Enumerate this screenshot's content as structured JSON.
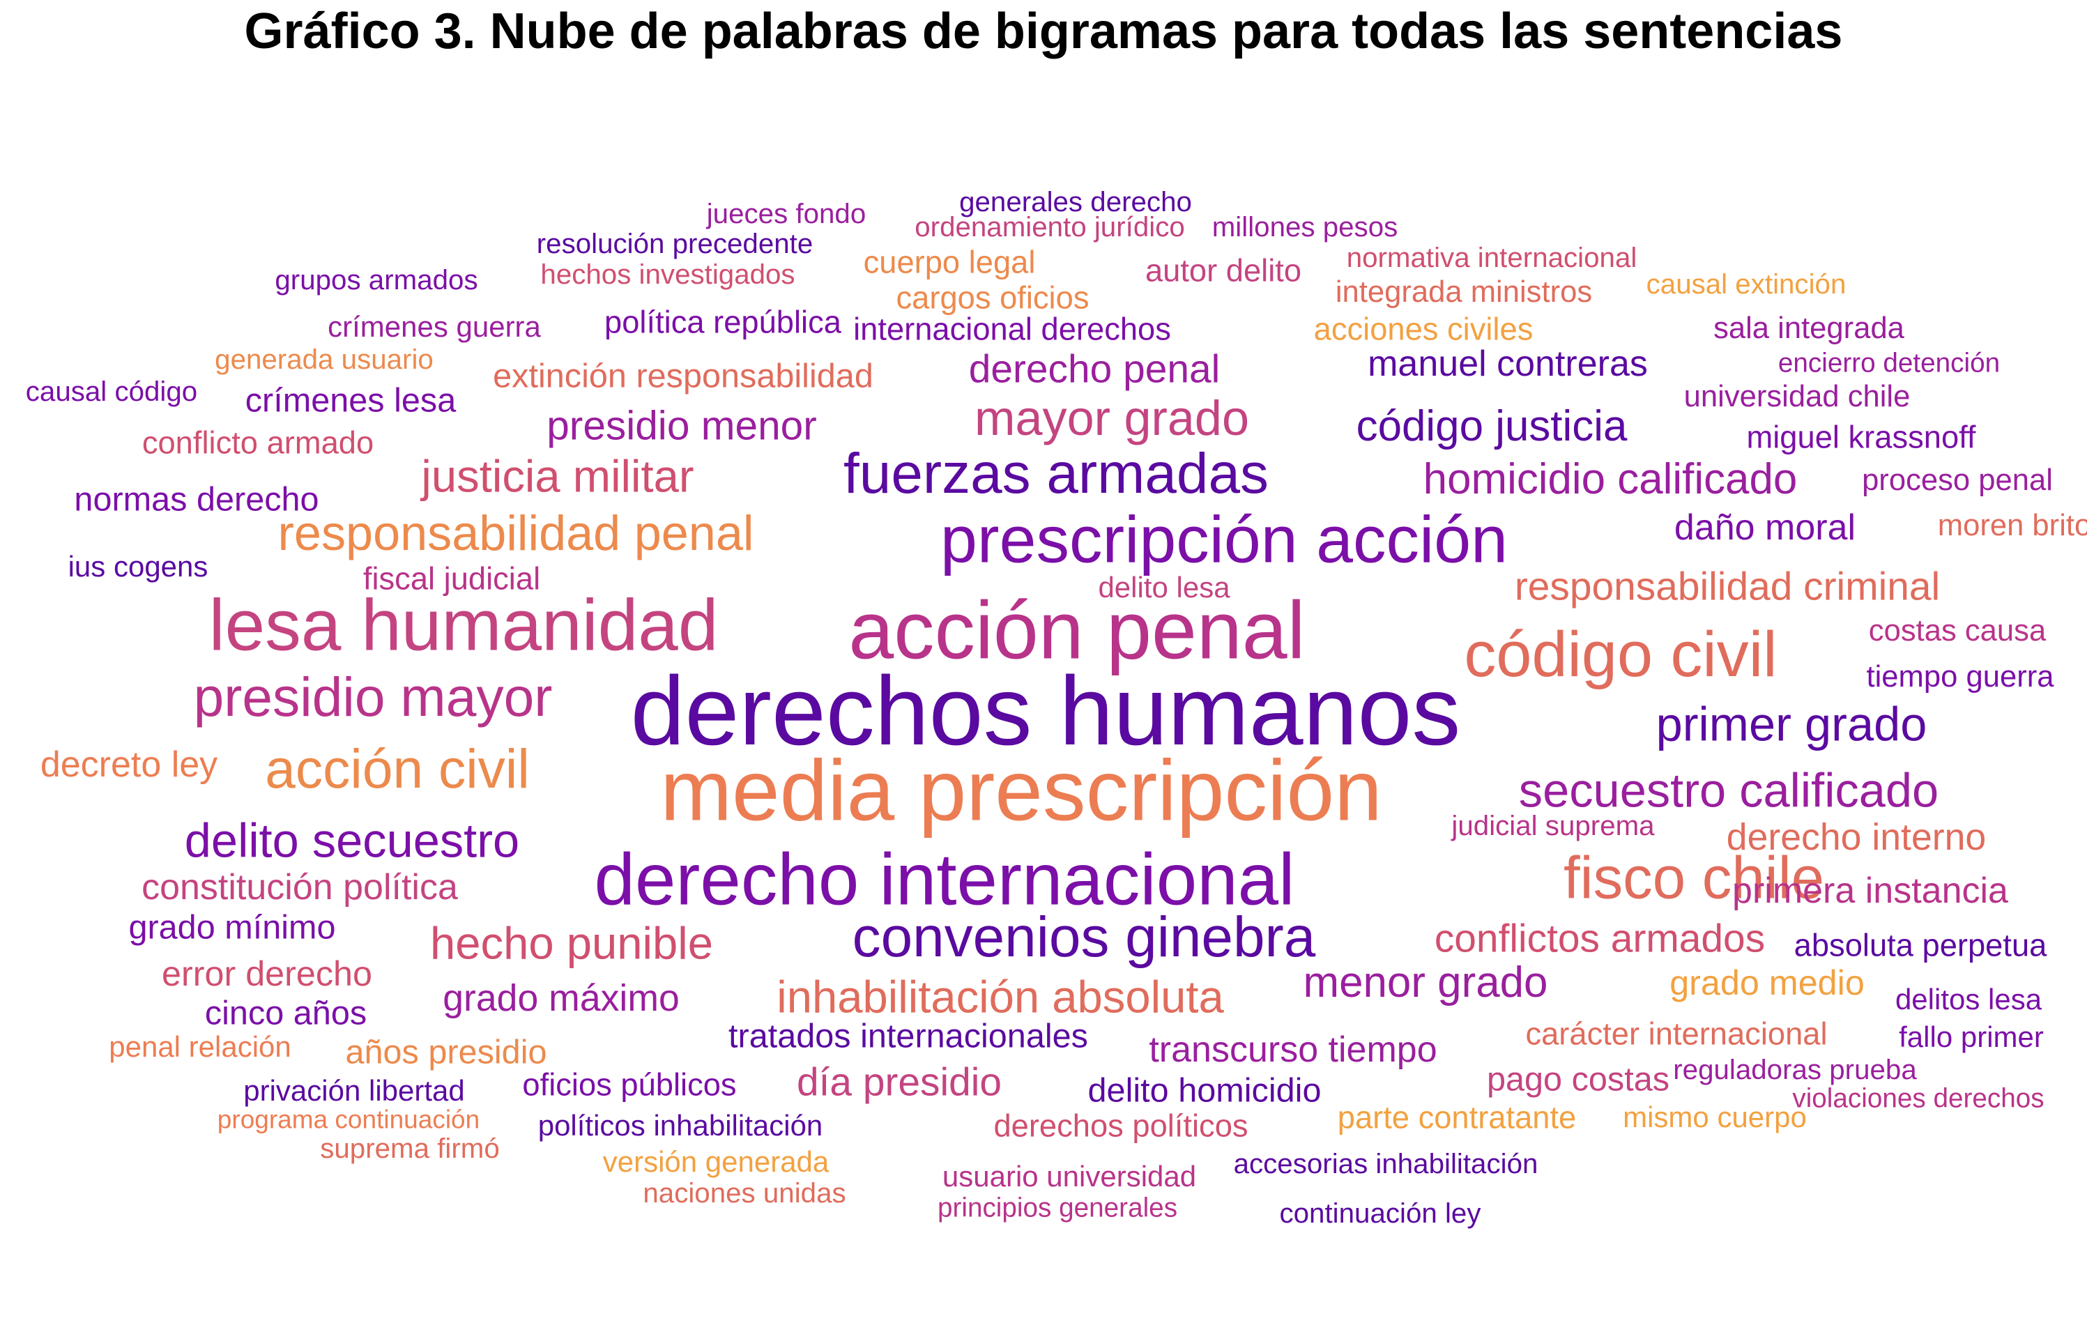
{
  "chart_data": {
    "type": "wordcloud",
    "title": "Gráfico 3. Nube de palabras de bigramas para todas las sentencias",
    "palette": [
      "#5a0aa0",
      "#7b0fa8",
      "#9a1f9e",
      "#b8338a",
      "#d04f6f",
      "#e06c5c",
      "#ec8a4c",
      "#f2a140"
    ],
    "words": [
      {
        "text": "derechos humanos",
        "weight": 100,
        "color": "#5a0aa0"
      },
      {
        "text": "media prescripción",
        "weight": 90,
        "color": "#ec7d52"
      },
      {
        "text": "acción penal",
        "weight": 86,
        "color": "#b8338a"
      },
      {
        "text": "derecho internacional",
        "weight": 79,
        "color": "#7b0fa8"
      },
      {
        "text": "lesa humanidad",
        "weight": 78,
        "color": "#c44480"
      },
      {
        "text": "prescripción acción",
        "weight": 73,
        "color": "#7b0fa8"
      },
      {
        "text": "código civil",
        "weight": 71,
        "color": "#e06c5c"
      },
      {
        "text": "fisco chile",
        "weight": 67,
        "color": "#e06c5c"
      },
      {
        "text": "fuerzas armadas",
        "weight": 65,
        "color": "#5a0aa0"
      },
      {
        "text": "convenios ginebra",
        "weight": 65,
        "color": "#5a0aa0"
      },
      {
        "text": "presidio mayor",
        "weight": 63,
        "color": "#b8338a"
      },
      {
        "text": "acción civil",
        "weight": 63,
        "color": "#ec8a4c"
      },
      {
        "text": "responsabilidad penal",
        "weight": 58,
        "color": "#ec8a4c"
      },
      {
        "text": "mayor grado",
        "weight": 58,
        "color": "#c44480"
      },
      {
        "text": "delito secuestro",
        "weight": 57,
        "color": "#7b0fa8"
      },
      {
        "text": "secuestro calificado",
        "weight": 57,
        "color": "#9a1f9e"
      },
      {
        "text": "primer grado",
        "weight": 57,
        "color": "#5a0aa0"
      },
      {
        "text": "hecho punible",
        "weight": 55,
        "color": "#d04f6f"
      },
      {
        "text": "inhabilitación absoluta",
        "weight": 55,
        "color": "#e06c5c"
      },
      {
        "text": "justicia militar",
        "weight": 55,
        "color": "#d04f6f"
      },
      {
        "text": "código justicia",
        "weight": 53,
        "color": "#5a0aa0"
      },
      {
        "text": "homicidio calificado",
        "weight": 53,
        "color": "#9a1f9e"
      },
      {
        "text": "menor grado",
        "weight": 53,
        "color": "#9a1f9e"
      },
      {
        "text": "presidio menor",
        "weight": 51,
        "color": "#9a1f9e"
      },
      {
        "text": "responsabilidad criminal",
        "weight": 50,
        "color": "#e06c5c"
      },
      {
        "text": "conflictos armados",
        "weight": 50,
        "color": "#d04f6f"
      },
      {
        "text": "derecho penal",
        "weight": 50,
        "color": "#9a1f9e"
      },
      {
        "text": "día presidio",
        "weight": 50,
        "color": "#c44480"
      },
      {
        "text": "derecho interno",
        "weight": 48,
        "color": "#e06c5c"
      },
      {
        "text": "grado máximo",
        "weight": 48,
        "color": "#9a1f9e"
      },
      {
        "text": "primera instancia",
        "weight": 47,
        "color": "#b8338a"
      },
      {
        "text": "constitución política",
        "weight": 47,
        "color": "#c44480"
      },
      {
        "text": "decreto ley",
        "weight": 47,
        "color": "#ec7d52"
      },
      {
        "text": "manuel contreras",
        "weight": 47,
        "color": "#5a0aa0"
      },
      {
        "text": "daño moral",
        "weight": 47,
        "color": "#7b0fa8"
      },
      {
        "text": "transcurso tiempo",
        "weight": 47,
        "color": "#9a1f9e"
      },
      {
        "text": "grado medio",
        "weight": 46,
        "color": "#f2a140"
      },
      {
        "text": "error derecho",
        "weight": 46,
        "color": "#d04f6f"
      },
      {
        "text": "delito homicidio",
        "weight": 45,
        "color": "#5a0aa0"
      },
      {
        "text": "crímenes lesa",
        "weight": 45,
        "color": "#7b0fa8"
      },
      {
        "text": "años presidio",
        "weight": 45,
        "color": "#ec8a4c"
      },
      {
        "text": "grado mínimo",
        "weight": 45,
        "color": "#7b0fa8"
      },
      {
        "text": "normas derecho",
        "weight": 45,
        "color": "#7b0fa8"
      },
      {
        "text": "cinco años",
        "weight": 45,
        "color": "#7b0fa8"
      },
      {
        "text": "pago costas",
        "weight": 45,
        "color": "#c44480"
      },
      {
        "text": "extinción responsabilidad",
        "weight": 45,
        "color": "#e06c5c"
      },
      {
        "text": "tratados internacionales",
        "weight": 45,
        "color": "#5a0aa0"
      },
      {
        "text": "carácter internacional",
        "weight": 43,
        "color": "#e06c5c"
      },
      {
        "text": "conflicto armado",
        "weight": 43,
        "color": "#d04f6f"
      },
      {
        "text": "internacional derechos",
        "weight": 43,
        "color": "#7b0fa8"
      },
      {
        "text": "política república",
        "weight": 43,
        "color": "#7b0fa8"
      },
      {
        "text": "cargos oficios",
        "weight": 43,
        "color": "#ec8a4c"
      },
      {
        "text": "cuerpo legal",
        "weight": 43,
        "color": "#ec8a4c"
      },
      {
        "text": "acciones civiles",
        "weight": 43,
        "color": "#f2a140"
      },
      {
        "text": "miguel krassnoff",
        "weight": 43,
        "color": "#7b0fa8"
      },
      {
        "text": "derechos políticos",
        "weight": 43,
        "color": "#d04f6f"
      },
      {
        "text": "parte contratante",
        "weight": 43,
        "color": "#f2a140"
      },
      {
        "text": "oficios públicos",
        "weight": 43,
        "color": "#7b0fa8"
      },
      {
        "text": "fiscal judicial",
        "weight": 43,
        "color": "#b8338a"
      },
      {
        "text": "absoluta perpetua",
        "weight": 43,
        "color": "#5a0aa0"
      },
      {
        "text": "autor delito",
        "weight": 43,
        "color": "#c44480"
      },
      {
        "text": "costas causa",
        "weight": 42,
        "color": "#b8338a"
      },
      {
        "text": "tiempo guerra",
        "weight": 42,
        "color": "#7b0fa8"
      },
      {
        "text": "moren brito",
        "weight": 42,
        "color": "#e06c5c"
      },
      {
        "text": "proceso penal",
        "weight": 42,
        "color": "#9a1f9e"
      },
      {
        "text": "universidad chile",
        "weight": 42,
        "color": "#9a1f9e"
      },
      {
        "text": "sala integrada",
        "weight": 42,
        "color": "#9a1f9e"
      },
      {
        "text": "integrada ministros",
        "weight": 42,
        "color": "#e06c5c"
      },
      {
        "text": "crímenes guerra",
        "weight": 41,
        "color": "#9a1f9e"
      },
      {
        "text": "ius cogens",
        "weight": 41,
        "color": "#5a0aa0"
      },
      {
        "text": "delito lesa",
        "weight": 41,
        "color": "#c44480"
      },
      {
        "text": "penal relación",
        "weight": 41,
        "color": "#ec7d52"
      },
      {
        "text": "privación libertad",
        "weight": 41,
        "color": "#5a0aa0"
      },
      {
        "text": "políticos inhabilitación",
        "weight": 41,
        "color": "#5a0aa0"
      },
      {
        "text": "versión generada",
        "weight": 41,
        "color": "#f2a140"
      },
      {
        "text": "usuario universidad",
        "weight": 41,
        "color": "#b8338a"
      },
      {
        "text": "mismo cuerpo",
        "weight": 41,
        "color": "#f2a140"
      },
      {
        "text": "delitos lesa",
        "weight": 41,
        "color": "#7b0fa8"
      },
      {
        "text": "fallo primer",
        "weight": 41,
        "color": "#7b0fa8"
      },
      {
        "text": "causal código",
        "weight": 40,
        "color": "#7b0fa8"
      },
      {
        "text": "generada usuario",
        "weight": 40,
        "color": "#ec8a4c"
      },
      {
        "text": "suprema firmó",
        "weight": 40,
        "color": "#e06c5c"
      },
      {
        "text": "naciones unidas",
        "weight": 40,
        "color": "#e06c5c"
      },
      {
        "text": "accesorias inhabilitación",
        "weight": 40,
        "color": "#5a0aa0"
      },
      {
        "text": "continuación ley",
        "weight": 40,
        "color": "#5a0aa0"
      },
      {
        "text": "reguladoras prueba",
        "weight": 40,
        "color": "#9a1f9e"
      },
      {
        "text": "judicial suprema",
        "weight": 40,
        "color": "#b8338a"
      },
      {
        "text": "grupos armados",
        "weight": 40,
        "color": "#7b0fa8"
      },
      {
        "text": "jueces fondo",
        "weight": 40,
        "color": "#9a1f9e"
      },
      {
        "text": "generales derecho",
        "weight": 40,
        "color": "#5a0aa0"
      },
      {
        "text": "resolución precedente",
        "weight": 40,
        "color": "#5a0aa0"
      },
      {
        "text": "hechos investigados",
        "weight": 40,
        "color": "#d04f6f"
      },
      {
        "text": "ordenamiento jurídico",
        "weight": 40,
        "color": "#c44480"
      },
      {
        "text": "millones pesos",
        "weight": 40,
        "color": "#9a1f9e"
      },
      {
        "text": "normativa internacional",
        "weight": 40,
        "color": "#d04f6f"
      },
      {
        "text": "causal extinción",
        "weight": 40,
        "color": "#f2a140"
      },
      {
        "text": "encierro detención",
        "weight": 39,
        "color": "#9a1f9e"
      },
      {
        "text": "violaciones derechos",
        "weight": 39,
        "color": "#b8338a"
      },
      {
        "text": "programa continuación",
        "weight": 38,
        "color": "#ec7d52"
      },
      {
        "text": "principios generales",
        "weight": 39,
        "color": "#b8338a"
      }
    ]
  }
}
